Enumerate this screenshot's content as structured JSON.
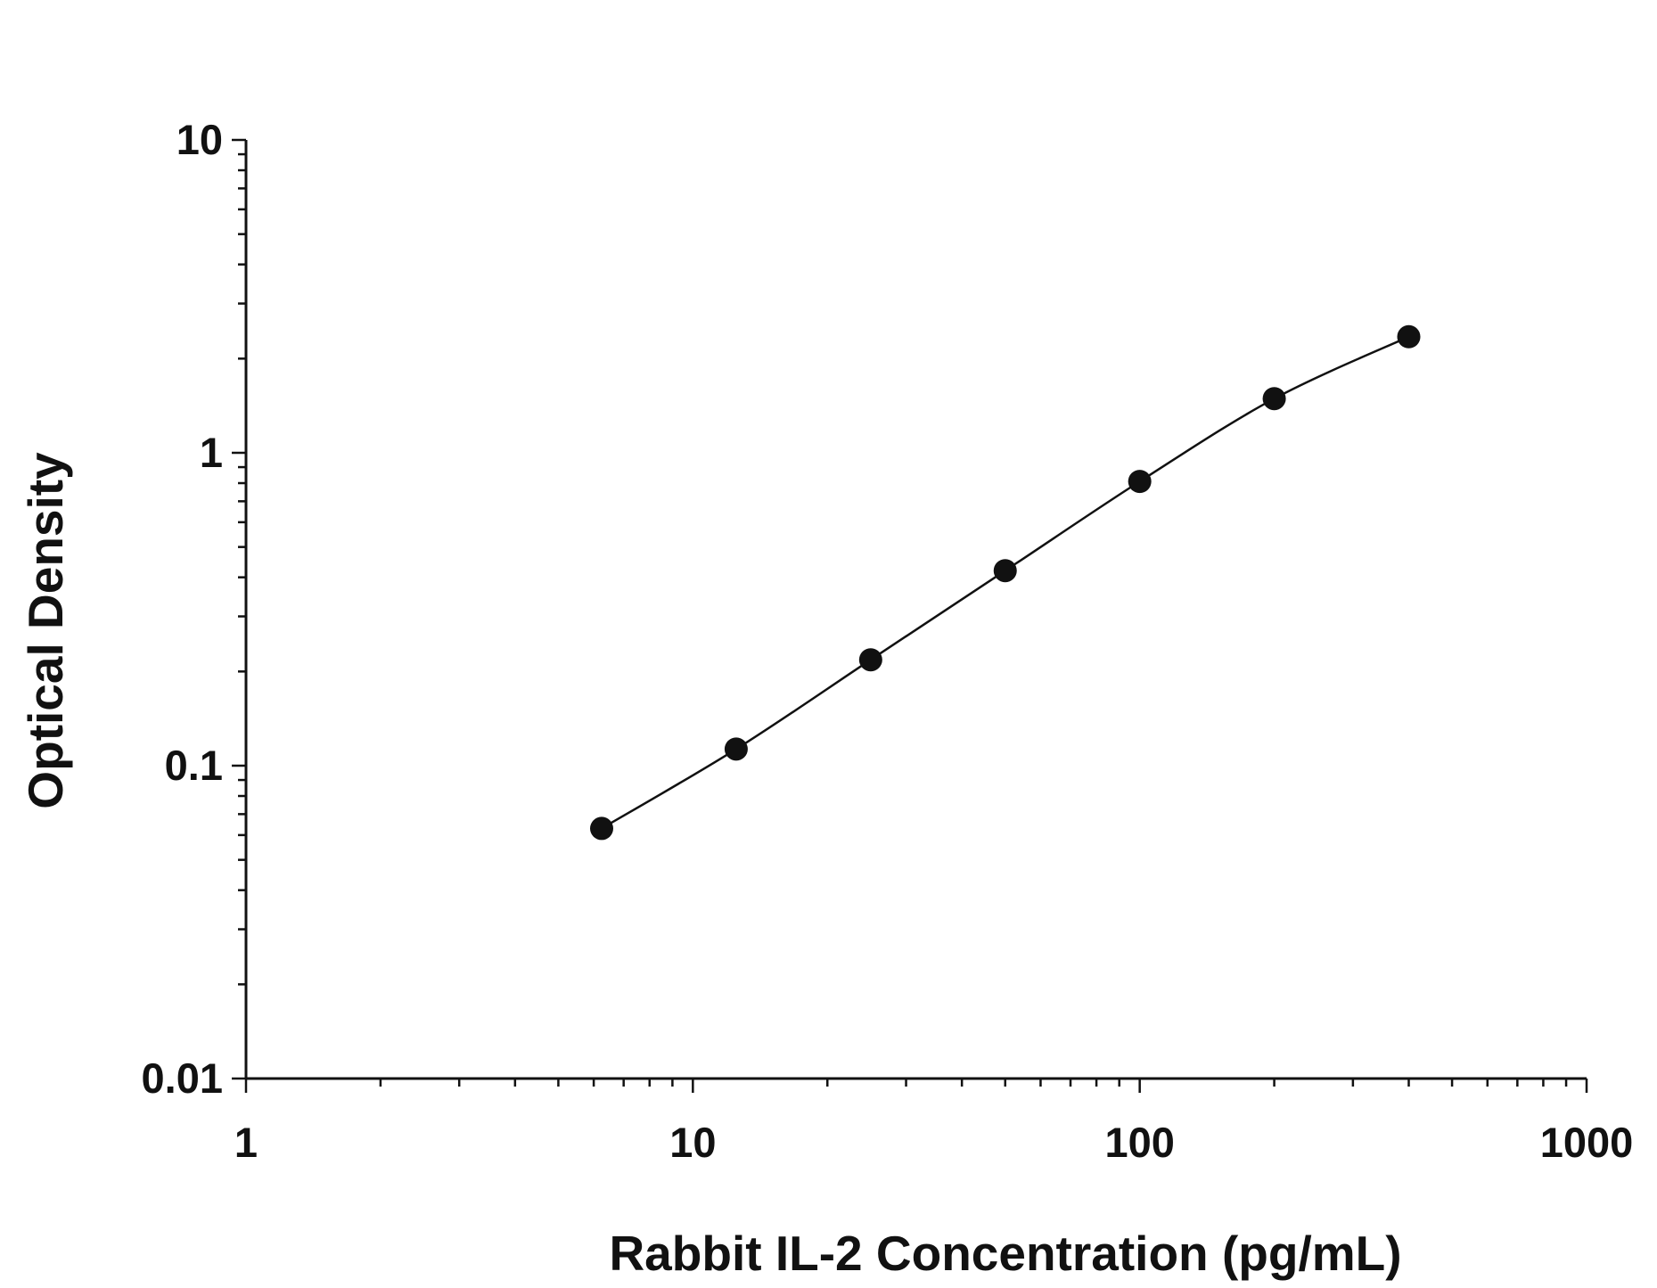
{
  "chart_data": {
    "type": "scatter",
    "title": "",
    "xlabel": "Rabbit IL-2 Concentration (pg/mL)",
    "ylabel": "Optical Density",
    "x_scale": "log",
    "y_scale": "log",
    "xlim": [
      1,
      1000
    ],
    "ylim": [
      0.01,
      10
    ],
    "x_ticks": [
      1,
      10,
      100,
      1000
    ],
    "y_ticks": [
      0.01,
      0.1,
      1,
      10
    ],
    "x_tick_labels": [
      "1",
      "10",
      "100",
      "1000"
    ],
    "y_tick_labels": [
      "0.01",
      "0.1",
      "1",
      "10"
    ],
    "grid": false,
    "legend": "none",
    "series": [
      {
        "x": [
          6.25,
          12.5,
          25,
          50,
          100,
          200,
          400
        ],
        "y": [
          0.063,
          0.113,
          0.218,
          0.42,
          0.81,
          1.49,
          2.35
        ],
        "marker": "filled-circle",
        "color": "#111111",
        "fit_line": true
      }
    ]
  }
}
